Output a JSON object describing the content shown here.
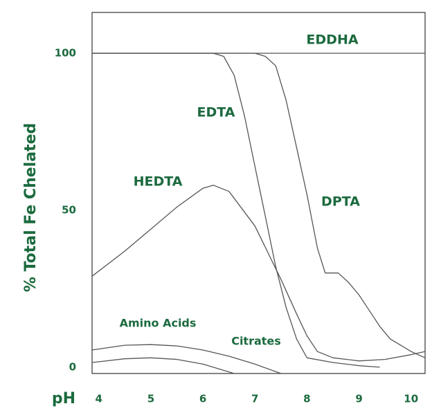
{
  "chart_data": {
    "type": "line",
    "xlabel": "pH",
    "ylabel": "% Total Fe Chelated",
    "xlim": [
      3.87,
      10.27
    ],
    "ylim": [
      -2,
      113
    ],
    "xticks": [
      4,
      5,
      6,
      7,
      8,
      9,
      10
    ],
    "yticks": [
      0,
      50,
      100
    ],
    "grid": false,
    "series": [
      {
        "name": "EDDHA",
        "color": "#555555",
        "x": [
          3.87,
          10.27
        ],
        "values": [
          100,
          100
        ]
      },
      {
        "name": "EDTA",
        "color": "#555555",
        "x": [
          3.87,
          6.2,
          6.4,
          6.6,
          6.8,
          7.0,
          7.2,
          7.4,
          7.6,
          7.8,
          8.0,
          8.5,
          9.0,
          9.4
        ],
        "values": [
          100,
          100,
          99,
          93,
          80,
          64,
          48,
          32,
          19,
          9,
          3,
          1.5,
          0.5,
          0
        ]
      },
      {
        "name": "DPTA",
        "color": "#555555",
        "x": [
          3.87,
          7.0,
          7.2,
          7.4,
          7.6,
          7.8,
          8.0,
          8.2,
          8.35,
          8.6,
          8.8,
          9.0,
          9.2,
          9.4,
          9.6,
          9.8,
          10.0,
          10.27
        ],
        "values": [
          100,
          100,
          99,
          96,
          85,
          70,
          55,
          38,
          30,
          30,
          27,
          23,
          18,
          13,
          9,
          7,
          5,
          3
        ]
      },
      {
        "name": "HEDTA",
        "color": "#555555",
        "x": [
          3.87,
          4.5,
          5.0,
          5.5,
          6.0,
          6.2,
          6.5,
          7.0,
          7.5,
          7.8,
          8.0,
          8.2,
          8.5,
          9.0,
          9.5,
          10.0,
          10.27
        ],
        "values": [
          29,
          37,
          44,
          51,
          57,
          58,
          56,
          45,
          28,
          17,
          10,
          5,
          3,
          2,
          2.5,
          4,
          5
        ]
      },
      {
        "name": "Amino Acids",
        "color": "#555555",
        "x": [
          3.87,
          4.5,
          5.0,
          5.5,
          6.0,
          6.5,
          7.0,
          7.5
        ],
        "values": [
          5.5,
          7,
          7.2,
          6.8,
          5.5,
          3.5,
          1,
          -2
        ]
      },
      {
        "name": "Citrates",
        "color": "#555555",
        "x": [
          3.87,
          4.5,
          5.0,
          5.5,
          6.0,
          6.6
        ],
        "values": [
          1.5,
          2.7,
          3,
          2.5,
          1,
          -2
        ]
      }
    ]
  }
}
